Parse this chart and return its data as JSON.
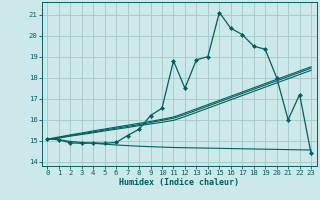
{
  "xlabel": "Humidex (Indice chaleur)",
  "bg_color": "#cce8e8",
  "grid_color": "#aacccc",
  "line_color": "#006060",
  "xlim": [
    -0.5,
    23.5
  ],
  "ylim": [
    13.8,
    21.6
  ],
  "yticks": [
    14,
    15,
    16,
    17,
    18,
    19,
    20,
    21
  ],
  "xticks": [
    0,
    1,
    2,
    3,
    4,
    5,
    6,
    7,
    8,
    9,
    10,
    11,
    12,
    13,
    14,
    15,
    16,
    17,
    18,
    19,
    20,
    21,
    22,
    23
  ],
  "x": [
    0,
    1,
    2,
    3,
    4,
    5,
    6,
    7,
    8,
    9,
    10,
    11,
    12,
    13,
    14,
    15,
    16,
    17,
    18,
    19,
    20,
    21,
    22,
    23
  ],
  "y_main": [
    15.1,
    15.05,
    14.9,
    14.88,
    14.9,
    14.88,
    14.92,
    15.25,
    15.55,
    16.2,
    16.55,
    18.8,
    17.5,
    18.85,
    19.0,
    21.1,
    20.35,
    20.05,
    19.5,
    19.35,
    18.0,
    16.0,
    17.2,
    14.4
  ],
  "y_diag1": [
    15.05,
    15.13,
    15.22,
    15.3,
    15.38,
    15.47,
    15.55,
    15.63,
    15.72,
    15.8,
    15.88,
    15.97,
    16.15,
    16.35,
    16.55,
    16.75,
    16.95,
    17.15,
    17.35,
    17.55,
    17.75,
    17.95,
    18.15,
    18.35
  ],
  "y_diag2": [
    15.05,
    15.15,
    15.25,
    15.33,
    15.42,
    15.51,
    15.6,
    15.68,
    15.77,
    15.87,
    15.97,
    16.07,
    16.25,
    16.45,
    16.65,
    16.85,
    17.05,
    17.25,
    17.45,
    17.65,
    17.85,
    18.05,
    18.25,
    18.45
  ],
  "y_diag3": [
    15.08,
    15.18,
    15.28,
    15.37,
    15.47,
    15.56,
    15.65,
    15.74,
    15.83,
    15.92,
    16.02,
    16.13,
    16.32,
    16.52,
    16.72,
    16.92,
    17.12,
    17.32,
    17.52,
    17.72,
    17.92,
    18.12,
    18.32,
    18.52
  ],
  "y_flat": [
    15.1,
    15.05,
    14.97,
    14.92,
    14.88,
    14.84,
    14.8,
    14.77,
    14.74,
    14.72,
    14.7,
    14.68,
    14.67,
    14.66,
    14.65,
    14.64,
    14.63,
    14.62,
    14.61,
    14.6,
    14.59,
    14.58,
    14.57,
    14.56
  ]
}
